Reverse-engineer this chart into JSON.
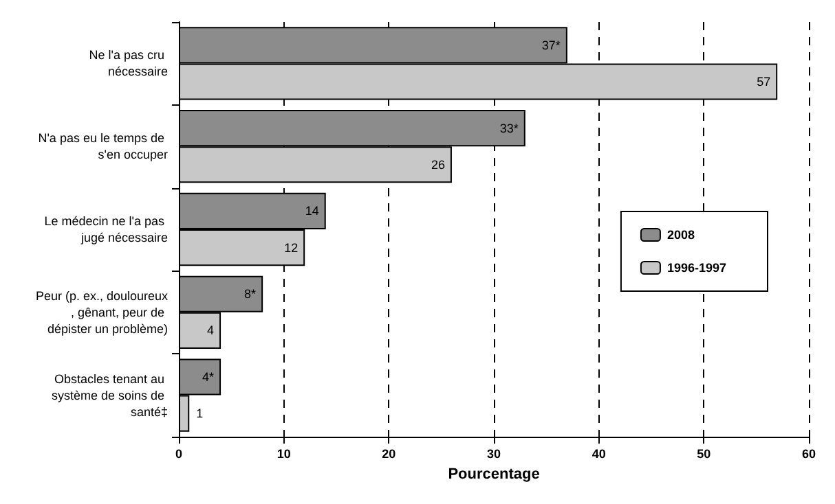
{
  "chart_data": {
    "type": "bar",
    "orientation": "horizontal",
    "xlabel": "Pourcentage",
    "categories": [
      "Ne l'a pas cru nécessaire",
      "N'a pas eu le temps de s'en occuper",
      "Le médecin ne l'a pas jugé nécessaire",
      "Peur (p. ex., douloureux, gênant, peur de dépister un problème)",
      "Obstacles tenant au système de soins de santé‡"
    ],
    "series": [
      {
        "name": "2008",
        "color": "#8c8c8c",
        "values": [
          37,
          33,
          14,
          8,
          4
        ],
        "value_labels": [
          "37*",
          "33*",
          "14",
          "8*",
          "4*"
        ]
      },
      {
        "name": "1996-1997",
        "color": "#c8c8c8",
        "values": [
          57,
          26,
          12,
          4,
          1
        ],
        "value_labels": [
          "57",
          "26",
          "12",
          "4",
          "1"
        ]
      }
    ],
    "xlim": [
      0,
      60
    ],
    "xticks": [
      0,
      10,
      20,
      30,
      40,
      50,
      60
    ],
    "grid": "x",
    "legend": "right"
  }
}
